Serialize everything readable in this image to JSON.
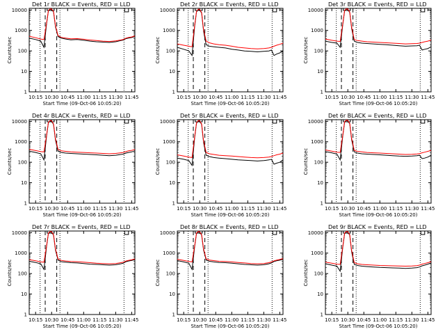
{
  "colors": {
    "events": "#000000",
    "lld": "#ff0000",
    "frame": "#000000",
    "background": "#ffffff"
  },
  "common": {
    "ylabel": "Counts/sec",
    "xlabel": "Start Time (09-Oct-06 10:05:20)",
    "xticks": [
      "10:15",
      "10:30",
      "10:45",
      "11:00",
      "11:15",
      "11:30",
      "11:45"
    ],
    "yticks": [
      "1",
      "10",
      "100",
      "1000",
      "10000"
    ]
  },
  "chart_data": [
    {
      "type": "line",
      "title": "Det 1r BLACK = Events, RED = LLD",
      "yscale": "log",
      "ylim": [
        1,
        12000
      ],
      "xlim": [
        10.15,
        11.8
      ],
      "x": [
        10.15,
        10.25,
        10.33,
        10.38,
        10.42,
        10.45,
        10.48,
        10.5,
        10.53,
        10.56,
        10.6,
        10.65,
        10.72,
        10.8,
        10.9,
        11.0,
        11.1,
        11.2,
        11.3,
        11.4,
        11.5,
        11.58,
        11.62,
        11.66,
        11.7,
        11.75,
        11.8
      ],
      "vlines_dotted": [
        10.32,
        10.63,
        11.63
      ],
      "vlines_dashed": [
        10.4,
        10.58
      ],
      "series": [
        {
          "name": "BLACK",
          "values": [
            420,
            360,
            300,
            150,
            2000,
            9000,
            11000,
            10500,
            8000,
            1500,
            500,
            420,
            380,
            350,
            360,
            330,
            300,
            280,
            270,
            260,
            280,
            320,
            340,
            400,
            420,
            450,
            500
          ]
        },
        {
          "name": "RED",
          "values": [
            520,
            440,
            380,
            360,
            2200,
            9500,
            11500,
            11000,
            8500,
            1700,
            560,
            460,
            420,
            390,
            400,
            370,
            340,
            320,
            300,
            290,
            310,
            340,
            360,
            420,
            450,
            480,
            540
          ]
        }
      ]
    },
    {
      "type": "line",
      "title": "Det 2r BLACK = Events, RED = LLD",
      "yscale": "log",
      "ylim": [
        1,
        12000
      ],
      "xlim": [
        10.15,
        11.8
      ],
      "x": [
        10.15,
        10.25,
        10.33,
        10.38,
        10.42,
        10.45,
        10.48,
        10.5,
        10.53,
        10.56,
        10.6,
        10.65,
        10.72,
        10.8,
        10.9,
        11.0,
        11.1,
        11.2,
        11.3,
        11.4,
        11.5,
        11.58,
        11.62,
        11.66,
        11.7,
        11.75,
        11.8
      ],
      "vlines_dotted": [
        10.32,
        10.63,
        11.63
      ],
      "vlines_dashed": [
        10.4,
        10.58
      ],
      "series": [
        {
          "name": "BLACK",
          "values": [
            150,
            120,
            100,
            60,
            1500,
            8000,
            10500,
            10000,
            7000,
            900,
            200,
            170,
            160,
            150,
            140,
            120,
            110,
            100,
            95,
            90,
            95,
            100,
            110,
            60,
            70,
            80,
            100
          ]
        },
        {
          "name": "RED",
          "values": [
            220,
            190,
            170,
            160,
            1700,
            8500,
            11000,
            10500,
            7500,
            1100,
            300,
            250,
            220,
            200,
            190,
            170,
            150,
            140,
            130,
            125,
            130,
            140,
            150,
            170,
            190,
            210,
            240
          ]
        }
      ]
    },
    {
      "type": "line",
      "title": "Det 3r BLACK = Events, RED = LLD",
      "yscale": "log",
      "ylim": [
        1,
        12000
      ],
      "xlim": [
        10.15,
        11.8
      ],
      "x": [
        10.15,
        10.25,
        10.33,
        10.38,
        10.42,
        10.45,
        10.48,
        10.5,
        10.53,
        10.56,
        10.6,
        10.65,
        10.72,
        10.8,
        10.9,
        11.0,
        11.1,
        11.2,
        11.3,
        11.4,
        11.5,
        11.58,
        11.62,
        11.66,
        11.7,
        11.75,
        11.8
      ],
      "vlines_dotted": [
        10.32,
        10.63,
        11.63
      ],
      "vlines_dashed": [
        10.4,
        10.58
      ],
      "series": [
        {
          "name": "BLACK",
          "values": [
            300,
            260,
            240,
            150,
            1800,
            9000,
            11000,
            10500,
            7500,
            1200,
            300,
            260,
            240,
            230,
            220,
            210,
            200,
            190,
            180,
            170,
            175,
            180,
            190,
            110,
            120,
            130,
            160
          ]
        },
        {
          "name": "RED",
          "values": [
            380,
            330,
            300,
            290,
            2000,
            9500,
            11500,
            11000,
            8000,
            1400,
            360,
            320,
            300,
            280,
            270,
            260,
            250,
            240,
            230,
            220,
            225,
            230,
            240,
            260,
            280,
            300,
            340
          ]
        }
      ]
    },
    {
      "type": "line",
      "title": "Det 4r BLACK = Events, RED = LLD",
      "yscale": "log",
      "ylim": [
        1,
        12000
      ],
      "xlim": [
        10.15,
        11.8
      ],
      "x": [
        10.15,
        10.25,
        10.33,
        10.38,
        10.42,
        10.45,
        10.48,
        10.5,
        10.53,
        10.56,
        10.6,
        10.65,
        10.72,
        10.8,
        10.9,
        11.0,
        11.1,
        11.2,
        11.3,
        11.4,
        11.5,
        11.58,
        11.62,
        11.66,
        11.7,
        11.75,
        11.8
      ],
      "vlines_dotted": [
        10.32,
        10.63,
        11.63
      ],
      "vlines_dashed": [
        10.4,
        10.58
      ],
      "series": [
        {
          "name": "BLACK",
          "values": [
            350,
            300,
            260,
            130,
            1800,
            8500,
            10500,
            10000,
            7000,
            1200,
            350,
            300,
            280,
            270,
            260,
            250,
            240,
            230,
            220,
            210,
            220,
            240,
            250,
            280,
            300,
            320,
            360
          ]
        },
        {
          "name": "RED",
          "values": [
            430,
            370,
            330,
            320,
            2000,
            9000,
            11000,
            10500,
            7500,
            1400,
            420,
            360,
            340,
            320,
            310,
            300,
            290,
            280,
            270,
            260,
            270,
            290,
            300,
            330,
            360,
            380,
            420
          ]
        }
      ]
    },
    {
      "type": "line",
      "title": "Det 5r BLACK = Events, RED = LLD",
      "yscale": "log",
      "ylim": [
        1,
        12000
      ],
      "xlim": [
        10.15,
        11.8
      ],
      "x": [
        10.15,
        10.25,
        10.33,
        10.38,
        10.42,
        10.45,
        10.48,
        10.5,
        10.53,
        10.56,
        10.6,
        10.65,
        10.72,
        10.8,
        10.9,
        11.0,
        11.1,
        11.2,
        11.3,
        11.4,
        11.5,
        11.58,
        11.62,
        11.66,
        11.7,
        11.75,
        11.8
      ],
      "vlines_dotted": [
        10.32,
        10.63,
        11.63
      ],
      "vlines_dashed": [
        10.4,
        10.58
      ],
      "series": [
        {
          "name": "BLACK",
          "values": [
            160,
            140,
            120,
            70,
            1500,
            8000,
            10500,
            10000,
            7000,
            900,
            220,
            190,
            170,
            160,
            150,
            140,
            130,
            125,
            120,
            115,
            120,
            130,
            140,
            80,
            90,
            100,
            130
          ]
        },
        {
          "name": "RED",
          "values": [
            230,
            200,
            180,
            170,
            1700,
            8500,
            11000,
            10500,
            7500,
            1100,
            300,
            260,
            240,
            220,
            210,
            200,
            190,
            180,
            170,
            165,
            170,
            180,
            190,
            210,
            230,
            250,
            280
          ]
        }
      ]
    },
    {
      "type": "line",
      "title": "Det 6r BLACK = Events, RED = LLD",
      "yscale": "log",
      "ylim": [
        1,
        12000
      ],
      "xlim": [
        10.15,
        11.8
      ],
      "x": [
        10.15,
        10.25,
        10.33,
        10.38,
        10.42,
        10.45,
        10.48,
        10.5,
        10.53,
        10.56,
        10.6,
        10.65,
        10.72,
        10.8,
        10.9,
        11.0,
        11.1,
        11.2,
        11.3,
        11.4,
        11.5,
        11.58,
        11.62,
        11.66,
        11.7,
        11.75,
        11.8
      ],
      "vlines_dotted": [
        10.32,
        10.63,
        11.63
      ],
      "vlines_dashed": [
        10.4,
        10.58
      ],
      "series": [
        {
          "name": "BLACK",
          "values": [
            330,
            290,
            250,
            130,
            1800,
            9000,
            11000,
            10500,
            7500,
            1200,
            320,
            280,
            260,
            250,
            240,
            230,
            220,
            210,
            200,
            195,
            200,
            210,
            220,
            150,
            160,
            180,
            220
          ]
        },
        {
          "name": "RED",
          "values": [
            400,
            350,
            310,
            300,
            2000,
            9500,
            11500,
            11000,
            8000,
            1400,
            380,
            340,
            320,
            300,
            290,
            280,
            270,
            260,
            250,
            240,
            245,
            255,
            265,
            290,
            310,
            340,
            380
          ]
        }
      ]
    },
    {
      "type": "line",
      "title": "Det 7r BLACK = Events, RED = LLD",
      "yscale": "log",
      "ylim": [
        1,
        12000
      ],
      "xlim": [
        10.15,
        11.8
      ],
      "x": [
        10.15,
        10.25,
        10.33,
        10.38,
        10.42,
        10.45,
        10.48,
        10.5,
        10.53,
        10.56,
        10.6,
        10.65,
        10.72,
        10.8,
        10.9,
        11.0,
        11.1,
        11.2,
        11.3,
        11.4,
        11.5,
        11.58,
        11.62,
        11.66,
        11.7,
        11.75,
        11.8
      ],
      "vlines_dotted": [
        10.32,
        10.63,
        11.63
      ],
      "vlines_dashed": [
        10.4,
        10.58
      ],
      "series": [
        {
          "name": "BLACK",
          "values": [
            400,
            350,
            300,
            160,
            2000,
            9000,
            11000,
            10500,
            7500,
            1400,
            450,
            380,
            360,
            340,
            330,
            310,
            290,
            280,
            270,
            260,
            270,
            300,
            320,
            380,
            410,
            440,
            480
          ]
        },
        {
          "name": "RED",
          "values": [
            480,
            420,
            370,
            360,
            2200,
            9500,
            11500,
            11000,
            8000,
            1600,
            520,
            440,
            410,
            390,
            380,
            360,
            340,
            320,
            310,
            300,
            310,
            340,
            360,
            410,
            440,
            470,
            520
          ]
        }
      ]
    },
    {
      "type": "line",
      "title": "Det 8r BLACK = Events, RED = LLD",
      "yscale": "log",
      "ylim": [
        1,
        12000
      ],
      "xlim": [
        10.15,
        11.8
      ],
      "x": [
        10.15,
        10.25,
        10.33,
        10.38,
        10.42,
        10.45,
        10.48,
        10.5,
        10.53,
        10.56,
        10.6,
        10.65,
        10.72,
        10.8,
        10.9,
        11.0,
        11.1,
        11.2,
        11.3,
        11.4,
        11.5,
        11.58,
        11.62,
        11.66,
        11.7,
        11.75,
        11.8
      ],
      "vlines_dotted": [
        10.32,
        10.63,
        11.63
      ],
      "vlines_dashed": [
        10.4,
        10.58
      ],
      "series": [
        {
          "name": "BLACK",
          "values": [
            430,
            370,
            320,
            160,
            2000,
            9000,
            11000,
            10500,
            7500,
            1400,
            450,
            400,
            370,
            350,
            340,
            320,
            300,
            280,
            270,
            260,
            270,
            300,
            330,
            390,
            420,
            450,
            500
          ]
        },
        {
          "name": "RED",
          "values": [
            500,
            440,
            390,
            370,
            2200,
            9500,
            11500,
            11000,
            8000,
            1600,
            520,
            460,
            430,
            400,
            390,
            370,
            350,
            330,
            310,
            300,
            310,
            340,
            370,
            420,
            450,
            490,
            540
          ]
        }
      ]
    },
    {
      "type": "line",
      "title": "Det 9r BLACK = Events, RED = LLD",
      "yscale": "log",
      "ylim": [
        1,
        12000
      ],
      "xlim": [
        10.15,
        11.8
      ],
      "x": [
        10.15,
        10.25,
        10.33,
        10.38,
        10.42,
        10.45,
        10.48,
        10.5,
        10.53,
        10.56,
        10.6,
        10.65,
        10.72,
        10.8,
        10.9,
        11.0,
        11.1,
        11.2,
        11.3,
        11.4,
        11.5,
        11.58,
        11.62,
        11.66,
        11.7,
        11.75,
        11.8
      ],
      "vlines_dotted": [
        10.32,
        10.63,
        11.63
      ],
      "vlines_dashed": [
        10.4,
        10.58
      ],
      "series": [
        {
          "name": "BLACK",
          "values": [
            300,
            260,
            230,
            130,
            1800,
            9000,
            11000,
            10500,
            7500,
            1100,
            280,
            250,
            230,
            220,
            210,
            200,
            195,
            190,
            185,
            180,
            185,
            195,
            210,
            240,
            260,
            290,
            330
          ]
        },
        {
          "name": "RED",
          "values": [
            360,
            320,
            290,
            280,
            2000,
            9500,
            11500,
            11000,
            8000,
            1300,
            340,
            300,
            280,
            270,
            260,
            250,
            245,
            240,
            235,
            230,
            235,
            245,
            260,
            290,
            310,
            340,
            380
          ]
        }
      ]
    }
  ]
}
